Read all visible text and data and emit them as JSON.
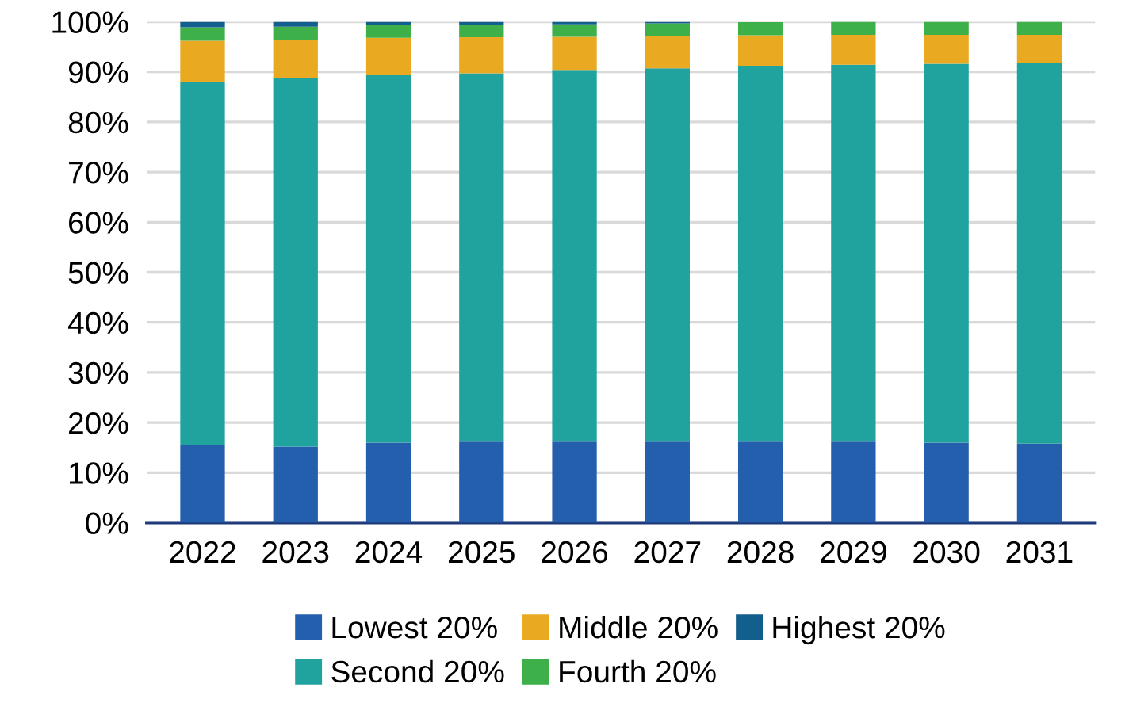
{
  "chart_data": {
    "type": "bar",
    "stacked": true,
    "categories": [
      "2022",
      "2023",
      "2024",
      "2025",
      "2026",
      "2027",
      "2028",
      "2029",
      "2030",
      "2031"
    ],
    "series": [
      {
        "name": "Lowest 20%",
        "color": "#245fad",
        "values": [
          15.5,
          15.2,
          16,
          16.2,
          16.2,
          16.2,
          16.2,
          16.2,
          16,
          15.8
        ]
      },
      {
        "name": "Second 20%",
        "color": "#20a39e",
        "values": [
          72.5,
          73.6,
          73.3,
          73.5,
          74.2,
          74.5,
          75.0,
          75.2,
          75.6,
          75.9
        ]
      },
      {
        "name": "Middle 20%",
        "color": "#e9a920",
        "values": [
          8.2,
          7.6,
          7.5,
          7.2,
          6.6,
          6.4,
          6.1,
          6.0,
          5.8,
          5.7
        ]
      },
      {
        "name": "Fourth 20%",
        "color": "#3db049",
        "values": [
          2.7,
          2.6,
          2.5,
          2.5,
          2.5,
          2.6,
          2.6,
          2.6,
          2.6,
          2.6
        ]
      },
      {
        "name": "Highest 20%",
        "color": "#125e8c",
        "values": [
          1.1,
          1.0,
          0.7,
          0.6,
          0.5,
          0.3,
          0,
          0,
          0,
          0
        ]
      }
    ],
    "ylim": [
      0,
      100
    ],
    "yticks": [
      {
        "value": 0,
        "label": "0%"
      },
      {
        "value": 10,
        "label": "10%"
      },
      {
        "value": 20,
        "label": "20%"
      },
      {
        "value": 30,
        "label": "30%"
      },
      {
        "value": 40,
        "label": "40%"
      },
      {
        "value": 50,
        "label": "50%"
      },
      {
        "value": 60,
        "label": "60%"
      },
      {
        "value": 70,
        "label": "70%"
      },
      {
        "value": 80,
        "label": "80%"
      },
      {
        "value": 90,
        "label": "90%"
      },
      {
        "value": 100,
        "label": "100%"
      }
    ],
    "grid": "y",
    "legend": "bottom"
  }
}
